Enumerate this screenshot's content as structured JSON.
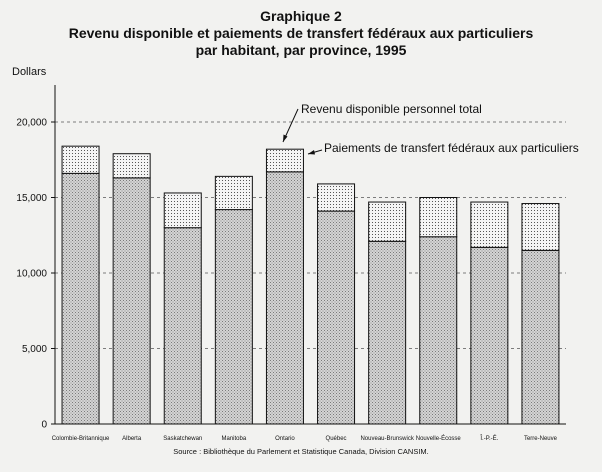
{
  "chart_data": {
    "type": "bar",
    "title": "Graphique 2",
    "subtitle_lines": [
      "Revenu disponible et paiements de transfert fédéraux aux particuliers",
      "par habitant, par province, 1995"
    ],
    "ylabel": "Dollars",
    "ylim": [
      0,
      20000
    ],
    "yticks": [
      0,
      5000,
      10000,
      15000,
      20000
    ],
    "ytick_labels": [
      "0",
      "5,000",
      "10,000",
      "15,000",
      "20,000"
    ],
    "grid": "horizontal-dashed",
    "stacked": true,
    "categories": [
      "Colombie-Britannique",
      "Alberta",
      "Saskatchewan",
      "Manitoba",
      "Ontario",
      "Québec",
      "Nouveau-Brunswick",
      "Nouvelle-Écosse",
      "Î.-P.-É.",
      "Terre-Neuve"
    ],
    "series": [
      {
        "name": "Revenu disponible personnel total",
        "values": [
          18400,
          17900,
          15300,
          16400,
          18200,
          15900,
          14700,
          15000,
          14700,
          14600
        ],
        "color": "#c8c8c8"
      },
      {
        "name": "Paiements de transfert fédéraux aux particuliers",
        "values": [
          1800,
          1600,
          2300,
          2200,
          1500,
          1800,
          2600,
          2600,
          3000,
          3100
        ],
        "color": "#e6e6e6"
      }
    ],
    "annotations": [
      "Revenu disponible personnel total",
      "Paiements de transfert fédéraux aux particuliers"
    ],
    "source": "Source : Bibliothèque du Parlement et Statistique Canada, Division CANSIM."
  }
}
